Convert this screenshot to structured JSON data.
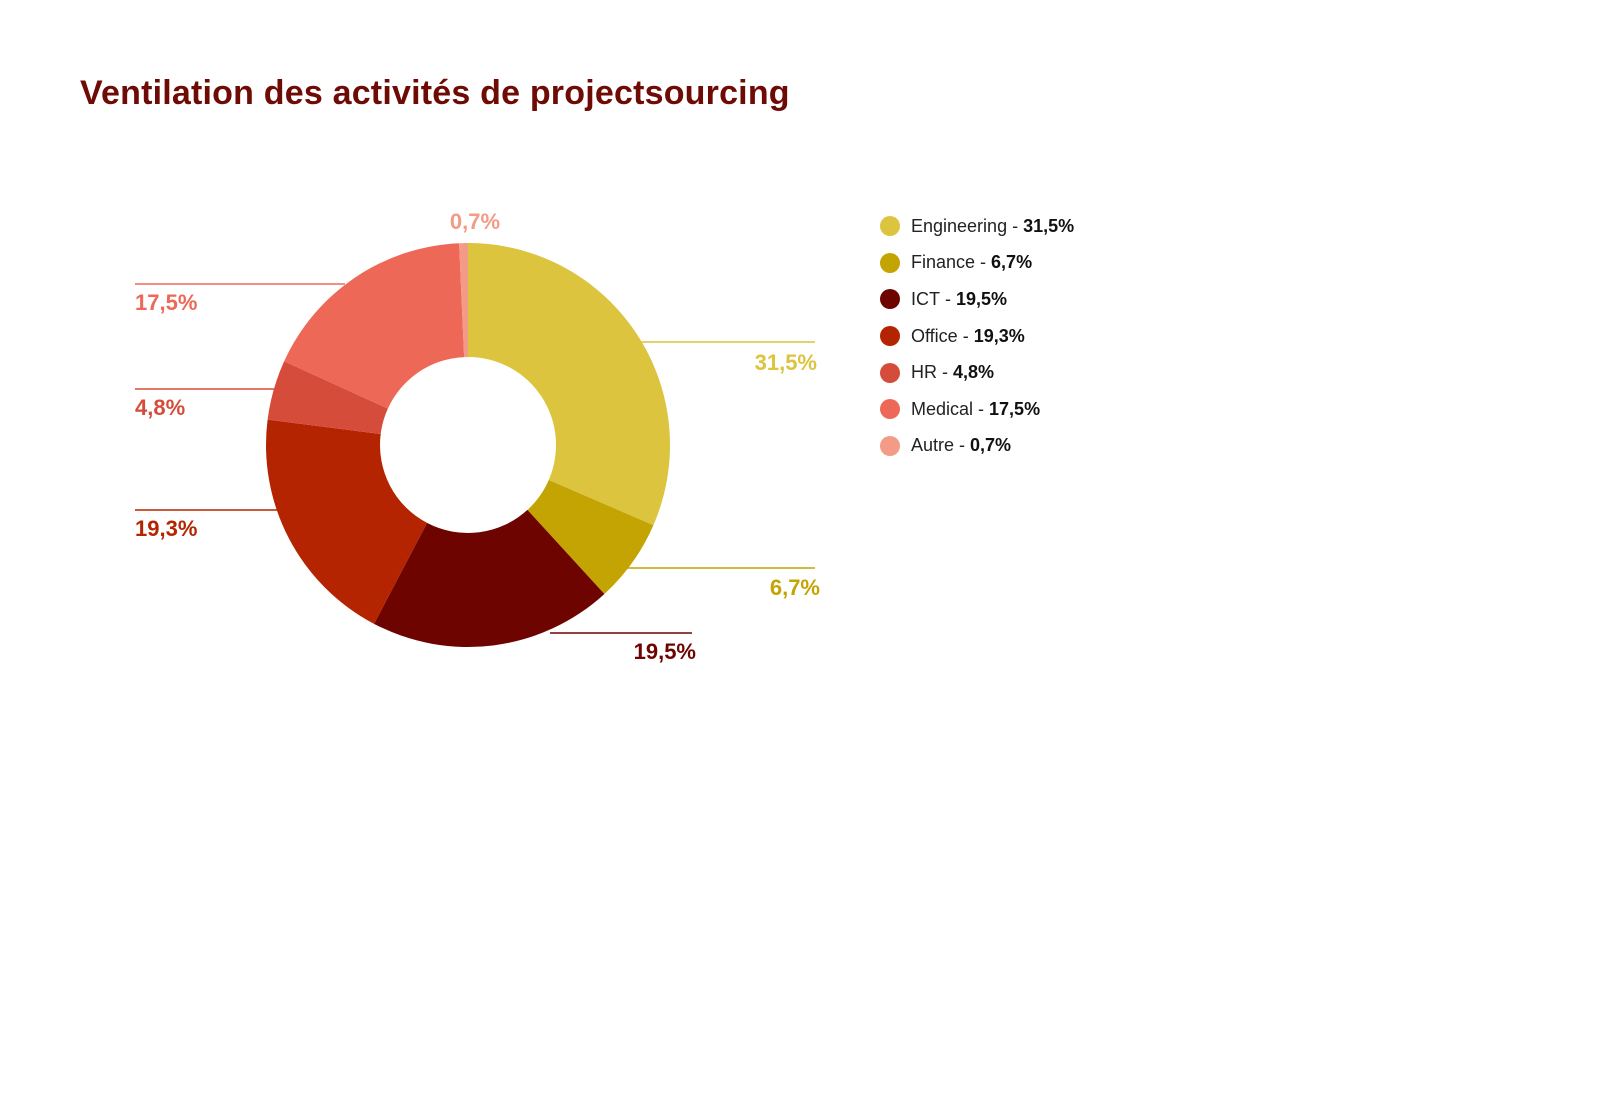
{
  "chart_data": {
    "type": "pie",
    "variant": "donut",
    "title": "Ventilation des activités de projectsourcing",
    "categories": [
      "Engineering",
      "Finance",
      "ICT",
      "Office",
      "HR",
      "Medical",
      "Autre"
    ],
    "values": [
      31.5,
      6.7,
      19.5,
      19.3,
      4.8,
      17.5,
      0.7
    ],
    "value_labels": [
      "31,5%",
      "6,7%",
      "19,5%",
      "19,3%",
      "4,8%",
      "17,5%",
      "0,7%"
    ],
    "colors": [
      "#dcc43f",
      "#c4a402",
      "#6e0400",
      "#b52401",
      "#d64c3a",
      "#ee6858",
      "#f39b86"
    ],
    "legend": {
      "placement": "right",
      "separator": " - "
    },
    "label_style": "leader-lines"
  }
}
